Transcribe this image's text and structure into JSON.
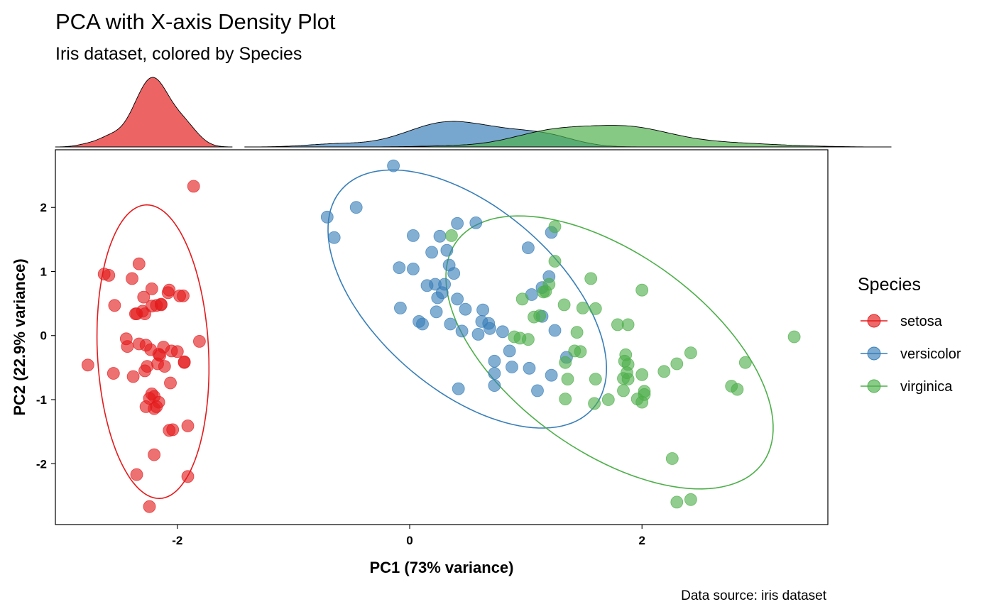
{
  "chart_data": {
    "type": "scatter",
    "title": "PCA with X-axis Density Plot",
    "subtitle": "Iris dataset, colored by Species",
    "xlabel": "PC1 (73% variance)",
    "ylabel": "PC2 (22.9% variance)",
    "xlim": [
      -3.05,
      3.6
    ],
    "ylim": [
      -2.95,
      2.9
    ],
    "x_ticks": [
      -2,
      0,
      2
    ],
    "y_ticks": [
      -2,
      -1,
      0,
      1,
      2
    ],
    "caption": "Data source: iris dataset",
    "legend": {
      "title": "Species",
      "position": "right"
    },
    "grid": false,
    "series": [
      {
        "name": "setosa",
        "color": "#E41A1C",
        "ellipse": {
          "cx": -2.2,
          "cy": -0.29,
          "rx_approx_pc1": 0.45,
          "ry_approx_pc2": 2.02
        },
        "density_peak_x": -2.2,
        "points": [
          [
            -2.26,
            -0.48
          ],
          [
            -2.08,
            0.67
          ],
          [
            -2.36,
            0.34
          ],
          [
            -2.29,
            0.6
          ],
          [
            -2.38,
            -0.64
          ],
          [
            -2.07,
            -1.48
          ],
          [
            -2.44,
            -0.05
          ],
          [
            -2.23,
            -0.22
          ],
          [
            -2.33,
            1.12
          ],
          [
            -2.18,
            0.47
          ],
          [
            -2.16,
            -1.04
          ],
          [
            -2.33,
            -0.13
          ],
          [
            -2.22,
            0.73
          ],
          [
            -2.63,
            0.96
          ],
          [
            -2.2,
            -1.86
          ],
          [
            -1.91,
            -2.2
          ],
          [
            -2.35,
            -2.17
          ],
          [
            -2.2,
            -0.95
          ],
          [
            -1.91,
            -1.41
          ],
          [
            -2.27,
            -1.11
          ],
          [
            -1.94,
            -0.41
          ],
          [
            -2.22,
            -0.91
          ],
          [
            -2.77,
            -0.46
          ],
          [
            -1.81,
            -0.09
          ],
          [
            -2.11,
            -0.48
          ],
          [
            -1.98,
            0.62
          ],
          [
            -2.05,
            -0.24
          ],
          [
            -2.17,
            -0.44
          ],
          [
            -2.15,
            -0.31
          ],
          [
            -2.28,
            0.34
          ],
          [
            -2.14,
            0.48
          ],
          [
            -1.94,
            -0.42
          ],
          [
            -2.2,
            -1.14
          ],
          [
            -2.04,
            -1.47
          ],
          [
            -2.14,
            0.49
          ],
          [
            -2.35,
            0.34
          ],
          [
            -2.0,
            -0.25
          ],
          [
            -2.43,
            -0.17
          ],
          [
            -2.54,
            0.47
          ],
          [
            -2.12,
            -0.18
          ],
          [
            -2.28,
            -0.55
          ],
          [
            -1.86,
            2.33
          ],
          [
            -2.55,
            -0.59
          ],
          [
            -2.24,
            -0.98
          ],
          [
            -2.18,
            -1.11
          ],
          [
            -2.22,
            0.46
          ],
          [
            -2.06,
            -0.74
          ],
          [
            -2.3,
            0.38
          ],
          [
            -2.16,
            -0.29
          ],
          [
            -2.24,
            -2.67
          ],
          [
            -2.39,
            0.89
          ],
          [
            -2.07,
            0.71
          ],
          [
            -1.95,
            0.62
          ],
          [
            -2.27,
            -0.15
          ],
          [
            -2.59,
            0.94
          ]
        ]
      },
      {
        "name": "versicolor",
        "color": "#377EB8",
        "ellipse": {
          "cx": 0.56,
          "cy": 0.23,
          "rotation_deg": 50
        },
        "density_peak_x": 0.3,
        "points": [
          [
            -0.14,
            2.65
          ],
          [
            -0.46,
            2.0
          ],
          [
            -0.71,
            1.85
          ],
          [
            -0.65,
            1.53
          ],
          [
            0.03,
            1.56
          ],
          [
            0.26,
            1.55
          ],
          [
            0.41,
            1.75
          ],
          [
            0.57,
            1.76
          ],
          [
            0.32,
            1.33
          ],
          [
            0.19,
            1.3
          ],
          [
            -0.09,
            1.06
          ],
          [
            0.03,
            1.04
          ],
          [
            0.34,
            1.1
          ],
          [
            0.38,
            0.97
          ],
          [
            0.22,
            0.8
          ],
          [
            0.3,
            0.8
          ],
          [
            0.28,
            0.67
          ],
          [
            0.15,
            0.78
          ],
          [
            0.41,
            0.57
          ],
          [
            0.24,
            0.59
          ],
          [
            0.48,
            0.41
          ],
          [
            0.63,
            0.4
          ],
          [
            -0.08,
            0.43
          ],
          [
            0.23,
            0.37
          ],
          [
            0.08,
            0.22
          ],
          [
            0.11,
            0.18
          ],
          [
            0.35,
            0.18
          ],
          [
            0.45,
            0.07
          ],
          [
            0.62,
            0.22
          ],
          [
            0.68,
            0.19
          ],
          [
            0.69,
            0.11
          ],
          [
            0.59,
            0.02
          ],
          [
            0.73,
            -0.4
          ],
          [
            0.73,
            -0.59
          ],
          [
            0.73,
            -0.78
          ],
          [
            0.86,
            -0.24
          ],
          [
            0.88,
            -0.49
          ],
          [
            1.03,
            -0.51
          ],
          [
            1.1,
            -0.86
          ],
          [
            0.42,
            -0.83
          ],
          [
            1.22,
            -0.62
          ],
          [
            1.35,
            -0.34
          ],
          [
            1.25,
            0.08
          ],
          [
            1.14,
            0.3
          ],
          [
            1.05,
            0.64
          ],
          [
            1.14,
            0.75
          ],
          [
            1.2,
            0.92
          ],
          [
            1.02,
            1.37
          ],
          [
            1.22,
            1.61
          ],
          [
            0.8,
            0.06
          ]
        ]
      },
      {
        "name": "virginica",
        "color": "#4DAF4A",
        "ellipse": {
          "cx": 1.76,
          "cy": -0.38,
          "rotation_deg": -38
        },
        "density_peak_x": 1.85,
        "points": [
          [
            0.36,
            1.56
          ],
          [
            1.25,
            1.7
          ],
          [
            1.25,
            1.16
          ],
          [
            1.56,
            0.89
          ],
          [
            1.2,
            0.8
          ],
          [
            1.15,
            0.68
          ],
          [
            1.17,
            0.69
          ],
          [
            2.0,
            0.71
          ],
          [
            0.97,
            0.57
          ],
          [
            1.33,
            0.48
          ],
          [
            1.49,
            0.43
          ],
          [
            1.6,
            0.42
          ],
          [
            1.07,
            0.29
          ],
          [
            1.12,
            0.31
          ],
          [
            1.79,
            0.17
          ],
          [
            1.88,
            0.17
          ],
          [
            0.9,
            -0.02
          ],
          [
            0.95,
            -0.04
          ],
          [
            1.02,
            -0.06
          ],
          [
            1.44,
            0.05
          ],
          [
            1.42,
            -0.24
          ],
          [
            1.47,
            -0.25
          ],
          [
            1.34,
            -0.42
          ],
          [
            1.36,
            -0.68
          ],
          [
            1.6,
            -0.68
          ],
          [
            1.34,
            -0.99
          ],
          [
            1.59,
            -1.06
          ],
          [
            1.71,
            -1.0
          ],
          [
            1.84,
            -0.86
          ],
          [
            1.84,
            -0.67
          ],
          [
            1.87,
            -0.58
          ],
          [
            1.85,
            -0.4
          ],
          [
            1.86,
            -0.3
          ],
          [
            1.88,
            -0.45
          ],
          [
            1.96,
            -0.99
          ],
          [
            2.0,
            -1.04
          ],
          [
            2.02,
            -0.92
          ],
          [
            2.02,
            -0.87
          ],
          [
            2.0,
            -0.61
          ],
          [
            2.19,
            -0.56
          ],
          [
            2.3,
            -0.44
          ],
          [
            2.42,
            -0.27
          ],
          [
            2.77,
            -0.79
          ],
          [
            2.82,
            -0.84
          ],
          [
            2.89,
            -0.42
          ],
          [
            3.31,
            -0.02
          ],
          [
            2.26,
            -1.92
          ],
          [
            2.3,
            -2.6
          ],
          [
            2.42,
            -2.56
          ],
          [
            1.88,
            -0.68
          ]
        ]
      }
    ]
  }
}
